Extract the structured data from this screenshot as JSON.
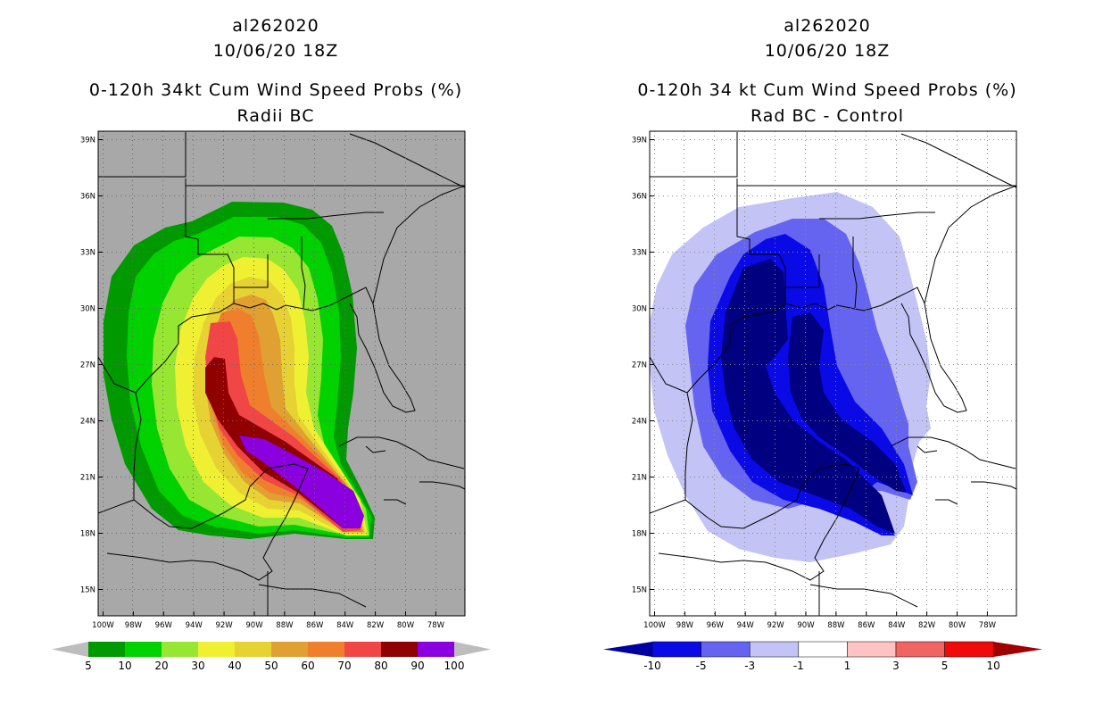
{
  "panels": [
    {
      "storm_id": "al262020",
      "date": "10/06/20 18Z",
      "title": "0-120h 34kt Cum Wind Speed Probs (%)",
      "subtitle": "Radii BC",
      "background": "#a8a8a8",
      "legend": {
        "labels": [
          "5",
          "10",
          "20",
          "30",
          "40",
          "50",
          "60",
          "70",
          "80",
          "90",
          "100"
        ],
        "colors": [
          "#009a00",
          "#00d200",
          "#96e632",
          "#f0f032",
          "#e6d232",
          "#e1a032",
          "#ef7f2c",
          "#f04646",
          "#900000",
          "#8a00de"
        ],
        "arrow_color": "#bdbdbd"
      }
    },
    {
      "storm_id": "al262020",
      "date": "10/06/20 18Z",
      "title": "0-120h 34 kt Cum Wind Speed Probs (%)",
      "subtitle": "Rad BC - Control",
      "background": "#ffffff",
      "legend": {
        "labels": [
          "-10",
          "-5",
          "-3",
          "-1",
          "1",
          "3",
          "5",
          "10"
        ],
        "colors": [
          "#0a0ae6",
          "#6464f0",
          "#c3c3f5",
          "#ffffff",
          "#ffc3c3",
          "#f06464",
          "#f00a0a"
        ],
        "arrow_left": "#0000a0",
        "arrow_right": "#a00000"
      }
    }
  ],
  "map": {
    "lat_labels": [
      "39N",
      "36N",
      "33N",
      "30N",
      "27N",
      "24N",
      "21N",
      "18N",
      "15N"
    ],
    "lon_labels": [
      "100W",
      "98W",
      "96W",
      "94W",
      "92W",
      "90W",
      "88W",
      "86W",
      "84W",
      "82W",
      "80W",
      "78W"
    ]
  }
}
